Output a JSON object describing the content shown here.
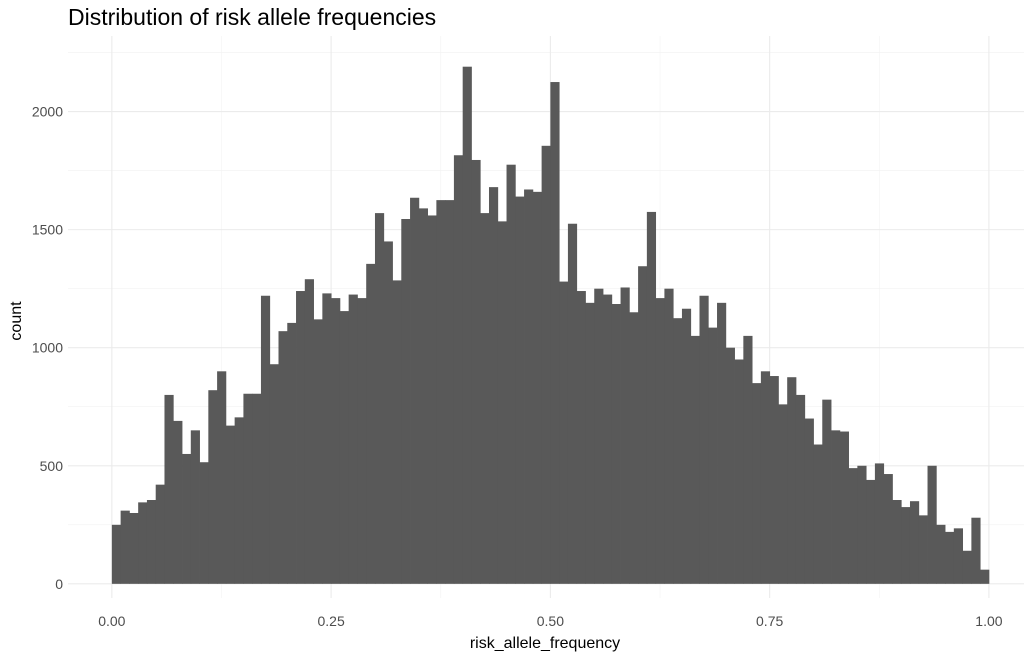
{
  "chart_data": {
    "type": "bar",
    "title": "Distribution of risk allele frequencies",
    "xlabel": "risk_allele_frequency",
    "ylabel": "count",
    "xlim": [
      -0.05,
      1.04
    ],
    "ylim": [
      -60,
      2320
    ],
    "x_ticks": [
      0.0,
      0.25,
      0.5,
      0.75,
      1.0
    ],
    "x_tick_labels": [
      "0.00",
      "0.25",
      "0.50",
      "0.75",
      "1.00"
    ],
    "y_ticks": [
      0,
      500,
      1000,
      1500,
      2000
    ],
    "y_tick_labels": [
      "0",
      "500",
      "1000",
      "1500",
      "2000"
    ],
    "grid": true,
    "bin_width": 0.01,
    "x_start": 0.0,
    "values": [
      250,
      310,
      300,
      345,
      355,
      420,
      800,
      690,
      550,
      650,
      515,
      820,
      900,
      670,
      705,
      805,
      805,
      1220,
      930,
      1070,
      1105,
      1240,
      1290,
      1120,
      1230,
      1210,
      1155,
      1225,
      1210,
      1355,
      1570,
      1450,
      1285,
      1545,
      1635,
      1590,
      1560,
      1625,
      1625,
      1815,
      2190,
      1795,
      1570,
      1680,
      1535,
      1775,
      1640,
      1670,
      1660,
      1855,
      2125,
      1280,
      1525,
      1240,
      1190,
      1250,
      1225,
      1185,
      1255,
      1150,
      1345,
      1575,
      1210,
      1250,
      1125,
      1165,
      1050,
      1220,
      1085,
      1190,
      1000,
      950,
      1050,
      850,
      900,
      880,
      760,
      875,
      800,
      700,
      590,
      780,
      650,
      645,
      490,
      500,
      440,
      510,
      465,
      355,
      325,
      350,
      290,
      500,
      250,
      220,
      235,
      140,
      280,
      60
    ]
  }
}
